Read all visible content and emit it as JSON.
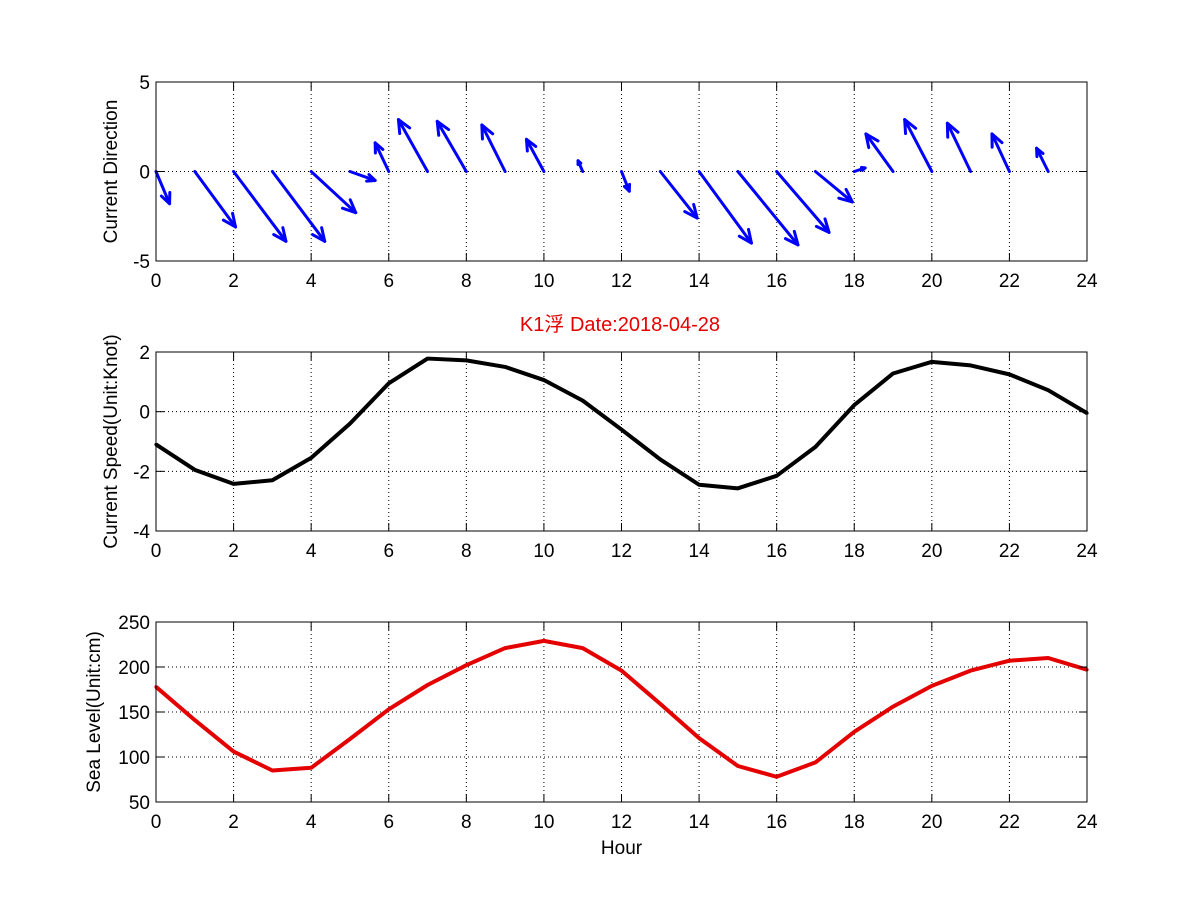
{
  "colors": {
    "direction": "#0000ff",
    "speed": "#000000",
    "sea_level": "#e50000",
    "title": "#e50000"
  },
  "title": "K1浮   Date:2018-04-28",
  "chart_data": [
    {
      "type": "quiver",
      "title": "",
      "xlabel": "",
      "ylabel": "Current Direction",
      "xlim": [
        0,
        24
      ],
      "ylim": [
        -5,
        5
      ],
      "xticks": [
        0,
        2,
        4,
        6,
        8,
        10,
        12,
        14,
        16,
        18,
        20,
        22,
        24
      ],
      "yticks": [
        5,
        0,
        -5
      ],
      "grid": "dotted",
      "arrows": [
        {
          "x": 0,
          "u": 0.35,
          "v": -1.8
        },
        {
          "x": 1,
          "u": 1.05,
          "v": -3.1
        },
        {
          "x": 2,
          "u": 1.35,
          "v": -3.9
        },
        {
          "x": 3,
          "u": 1.35,
          "v": -3.9
        },
        {
          "x": 4,
          "u": 1.15,
          "v": -2.3
        },
        {
          "x": 5,
          "u": 0.65,
          "v": -0.5
        },
        {
          "x": 6,
          "u": -0.35,
          "v": 1.6
        },
        {
          "x": 7,
          "u": -0.75,
          "v": 2.9
        },
        {
          "x": 8,
          "u": -0.75,
          "v": 2.8
        },
        {
          "x": 9,
          "u": -0.6,
          "v": 2.6
        },
        {
          "x": 10,
          "u": -0.45,
          "v": 1.8
        },
        {
          "x": 11,
          "u": -0.12,
          "v": 0.6
        },
        {
          "x": 12,
          "u": 0.2,
          "v": -1.1
        },
        {
          "x": 13,
          "u": 0.95,
          "v": -2.6
        },
        {
          "x": 14,
          "u": 1.35,
          "v": -4.0
        },
        {
          "x": 15,
          "u": 1.55,
          "v": -4.1
        },
        {
          "x": 16,
          "u": 1.35,
          "v": -3.4
        },
        {
          "x": 17,
          "u": 0.95,
          "v": -1.7
        },
        {
          "x": 18,
          "u": 0.28,
          "v": 0.2
        },
        {
          "x": 19,
          "u": -0.7,
          "v": 2.1
        },
        {
          "x": 20,
          "u": -0.7,
          "v": 2.9
        },
        {
          "x": 21,
          "u": -0.6,
          "v": 2.7
        },
        {
          "x": 22,
          "u": -0.45,
          "v": 2.1
        },
        {
          "x": 23,
          "u": -0.3,
          "v": 1.3
        }
      ]
    },
    {
      "type": "line",
      "title": "",
      "xlabel": "",
      "ylabel": "Current Speed(Unit:Knot)",
      "xlim": [
        0,
        24
      ],
      "ylim": [
        -4,
        2
      ],
      "xticks": [
        0,
        2,
        4,
        6,
        8,
        10,
        12,
        14,
        16,
        18,
        20,
        22,
        24
      ],
      "yticks": [
        2,
        0,
        -2,
        -4
      ],
      "grid": "dotted",
      "series": [
        {
          "x": [
            0,
            1,
            2,
            3,
            4,
            5,
            6,
            7,
            8,
            9,
            10,
            11,
            12,
            13,
            14,
            15,
            16,
            17,
            18,
            19,
            20,
            21,
            22,
            23,
            24
          ],
          "values": [
            -1.1,
            -1.95,
            -2.42,
            -2.3,
            -1.55,
            -0.4,
            0.95,
            1.78,
            1.72,
            1.5,
            1.06,
            0.37,
            -0.6,
            -1.6,
            -2.45,
            -2.57,
            -2.15,
            -1.18,
            0.22,
            1.28,
            1.67,
            1.55,
            1.25,
            0.72,
            -0.05
          ]
        }
      ]
    },
    {
      "type": "line",
      "title": "",
      "xlabel": "Hour",
      "ylabel": "Sea Level(Unit:cm)",
      "xlim": [
        0,
        24
      ],
      "ylim": [
        50,
        250
      ],
      "xticks": [
        0,
        2,
        4,
        6,
        8,
        10,
        12,
        14,
        16,
        18,
        20,
        22,
        24
      ],
      "yticks": [
        250,
        200,
        150,
        100,
        50
      ],
      "grid": "dotted",
      "series": [
        {
          "x": [
            0,
            1,
            2,
            3,
            4,
            5,
            6,
            7,
            8,
            9,
            10,
            11,
            12,
            13,
            14,
            15,
            16,
            17,
            18,
            19,
            20,
            21,
            22,
            23,
            24
          ],
          "values": [
            178,
            141,
            106,
            85,
            88,
            120,
            153,
            180,
            202,
            221,
            229,
            221,
            196,
            159,
            121,
            90,
            78,
            94,
            128,
            156,
            179,
            196,
            207,
            210,
            197
          ]
        }
      ]
    }
  ]
}
